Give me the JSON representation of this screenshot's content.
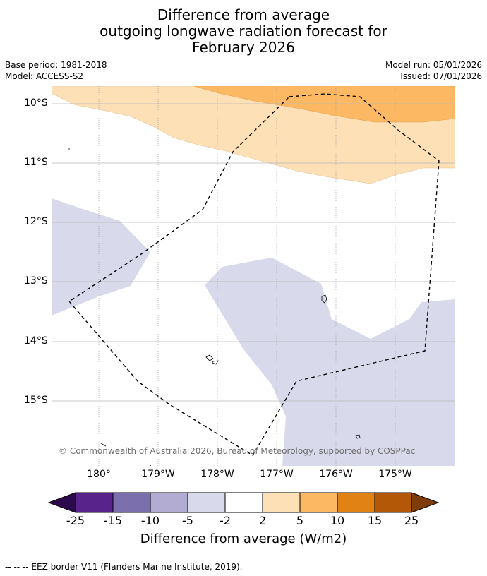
{
  "title": {
    "line1": "Difference from average",
    "line2": "outgoing longwave radiation forecast for",
    "line3": "February 2026"
  },
  "meta": {
    "base_period": "Base period: 1981-2018",
    "model": "Model: ACCESS-S2",
    "model_run": "Model run: 05/01/2026",
    "issued": "Issued: 07/01/2026"
  },
  "map": {
    "lat_labels": [
      "10°S",
      "11°S",
      "12°S",
      "13°S",
      "14°S",
      "15°S"
    ],
    "lon_labels": [
      "180°",
      "179°W",
      "178°W",
      "177°W",
      "176°W",
      "175°W"
    ],
    "copyright": "© Commonwealth of Australia 2026, Bureau of Meteorology, supported by COSPPac",
    "region_categories": [
      "2 to 5",
      "5 to 10",
      "-5 to -2"
    ]
  },
  "colorbar": {
    "ticks": [
      "-25",
      "-15",
      "-10",
      "-5",
      "-2",
      "2",
      "5",
      "10",
      "15",
      "25"
    ],
    "colors": [
      "#2d0a4e",
      "#59238c",
      "#7c6fad",
      "#b2abd2",
      "#d8d9ea",
      "#ffffff",
      "#fee0b6",
      "#fdb863",
      "#e08214",
      "#b35806",
      "#7f3b08"
    ],
    "label": "Difference from average (W/m2)"
  },
  "footer": {
    "legend": "--  --  -- EEZ border V11 (Flanders Marine Institute, 2019)."
  }
}
